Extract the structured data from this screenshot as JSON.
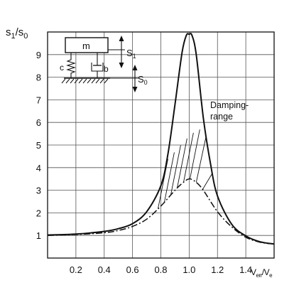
{
  "chart_data": {
    "type": "line",
    "title": "",
    "ylabel": "s",
    "ylabel_sub1": "1",
    "ylabel_sep": "/s",
    "ylabel_sub0": "0",
    "xlabel_main": "V",
    "xlabel_sub1": "err",
    "xlabel_sep": "/V",
    "xlabel_sub2": "e",
    "xlim": [
      0,
      1.6
    ],
    "ylim": [
      0,
      10
    ],
    "x_ticks": [
      0.2,
      0.4,
      0.6,
      0.8,
      1.0,
      1.2,
      1.4
    ],
    "x_tick_labels": [
      "0.2",
      "0.4",
      "0.6",
      "0.8",
      "1.0",
      "1.2",
      "1.4"
    ],
    "y_ticks": [
      1,
      2,
      3,
      4,
      5,
      6,
      7,
      8,
      9
    ],
    "y_tick_labels": [
      "1",
      "2",
      "3",
      "4",
      "5",
      "6",
      "7",
      "8",
      "9"
    ],
    "grid": true,
    "series": [
      {
        "style": "solid",
        "x": [
          0,
          0.2,
          0.4,
          0.5,
          0.6,
          0.7,
          0.8,
          0.85,
          0.9,
          0.95,
          0.98,
          1.0,
          1.02,
          1.05,
          1.1,
          1.15,
          1.2,
          1.3,
          1.4,
          1.5,
          1.6
        ],
        "y": [
          1.02,
          1.06,
          1.18,
          1.3,
          1.52,
          2.05,
          3.2,
          4.6,
          6.8,
          9.1,
          9.85,
          9.9,
          9.85,
          9.0,
          6.2,
          4.2,
          2.75,
          1.5,
          0.98,
          0.72,
          0.62
        ]
      },
      {
        "style": "dash-dot",
        "x": [
          0,
          0.2,
          0.4,
          0.5,
          0.6,
          0.7,
          0.8,
          0.9,
          0.95,
          1.0,
          1.05,
          1.1,
          1.2,
          1.3,
          1.4,
          1.5,
          1.6
        ],
        "y": [
          1.0,
          1.04,
          1.12,
          1.22,
          1.4,
          1.72,
          2.3,
          3.0,
          3.3,
          3.5,
          3.35,
          3.0,
          2.05,
          1.38,
          0.92,
          0.7,
          0.62
        ]
      }
    ],
    "annotation": {
      "line1": "Damping-",
      "line2": "range"
    },
    "inset": {
      "mass_label": "m",
      "spring_label": "c",
      "damper_label": "b",
      "s1_main": "S",
      "s1_sub": "1",
      "s0_main": "S",
      "s0_sub": "0"
    }
  }
}
